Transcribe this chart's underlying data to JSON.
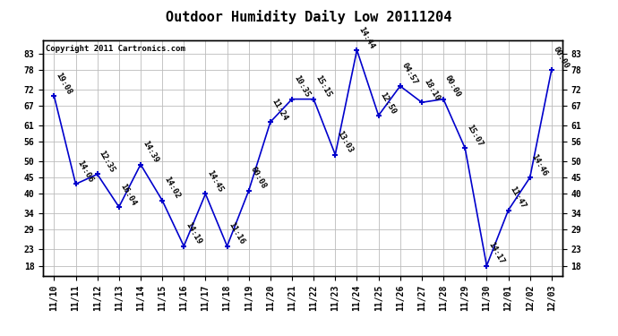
{
  "title": "Outdoor Humidity Daily Low 20111204",
  "copyright": "Copyright 2011 Cartronics.com",
  "x_labels": [
    "11/10",
    "11/11",
    "11/12",
    "11/13",
    "11/14",
    "11/15",
    "11/16",
    "11/17",
    "11/18",
    "11/19",
    "11/20",
    "11/21",
    "11/22",
    "11/23",
    "11/24",
    "11/25",
    "11/26",
    "11/27",
    "11/28",
    "11/29",
    "11/30",
    "12/01",
    "12/02",
    "12/03"
  ],
  "y_values": [
    70,
    43,
    46,
    36,
    49,
    38,
    24,
    40,
    24,
    41,
    62,
    69,
    69,
    52,
    84,
    64,
    73,
    68,
    69,
    54,
    18,
    35,
    45,
    78
  ],
  "point_labels": [
    "19:08",
    "14:06",
    "12:35",
    "16:04",
    "14:39",
    "14:02",
    "14:19",
    "14:45",
    "11:16",
    "00:08",
    "11:24",
    "10:35",
    "15:15",
    "13:03",
    "14:44",
    "12:50",
    "04:57",
    "18:10",
    "00:00",
    "15:07",
    "14:17",
    "11:47",
    "14:46",
    "00:00"
  ],
  "line_color": "#0000cc",
  "marker_color": "#0000cc",
  "bg_color": "#ffffff",
  "plot_bg_color": "#ffffff",
  "grid_color": "#bbbbbb",
  "title_fontsize": 11,
  "label_fontsize": 6.5,
  "tick_fontsize": 7,
  "y_ticks": [
    18,
    23,
    29,
    34,
    40,
    45,
    50,
    56,
    61,
    67,
    72,
    78,
    83
  ],
  "ylim": [
    15,
    87
  ],
  "copyright_fontsize": 6.5
}
